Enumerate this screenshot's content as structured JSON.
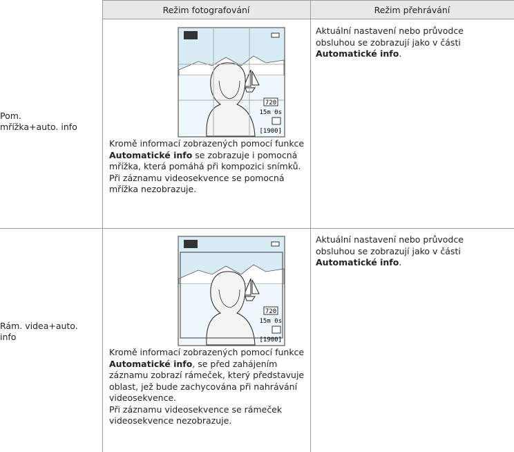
{
  "table": {
    "header": [
      "Režim fotografování",
      "Režim přehrávání"
    ],
    "rows": [
      {
        "label": [
          "Pom.",
          "mřížka+auto. info"
        ],
        "screen": {
          "movie": "720",
          "time": "15m 0s",
          "count": "[1900]"
        },
        "photo": [
          [
            {
              "text": "Kromě informací zobrazených pomocí funkce "
            },
            {
              "text": "Automatické info",
              "bold": true
            },
            {
              "text": " se zobrazuje i pomocná mřížka, která pomáhá při kompozici snímků."
            }
          ],
          [
            {
              "text": "Při záznamu videosekvence se pomocná mřížka nezobrazuje."
            }
          ]
        ],
        "playback": [
          {
            "text": "Aktuální nastavení nebo průvodce obsluhou se zobrazují jako v části "
          },
          {
            "text": "Automatické info",
            "bold": true
          },
          {
            "text": "."
          }
        ]
      },
      {
        "label": [
          "Rám. videa+auto.",
          "info"
        ],
        "screen": {
          "movie": "720",
          "time": "15m 0s",
          "count": "[1900]"
        },
        "photo": [
          [
            {
              "text": "Kromě informací zobrazených pomocí funkce "
            },
            {
              "text": "Automatické info",
              "bold": true
            },
            {
              "text": ", se před zahájením záznamu zobrazí rámeček, který představuje oblast, jež bude zachycována při nahrávání videosekvence."
            }
          ],
          [
            {
              "text": "Při záznamu videosekvence se rámeček videosekvence nezobrazuje."
            }
          ]
        ],
        "playback": [
          {
            "text": "Aktuální nastavení nebo průvodce obsluhou se zobrazují jako v části "
          },
          {
            "text": "Automatické info",
            "bold": true
          },
          {
            "text": "."
          }
        ]
      }
    ]
  }
}
